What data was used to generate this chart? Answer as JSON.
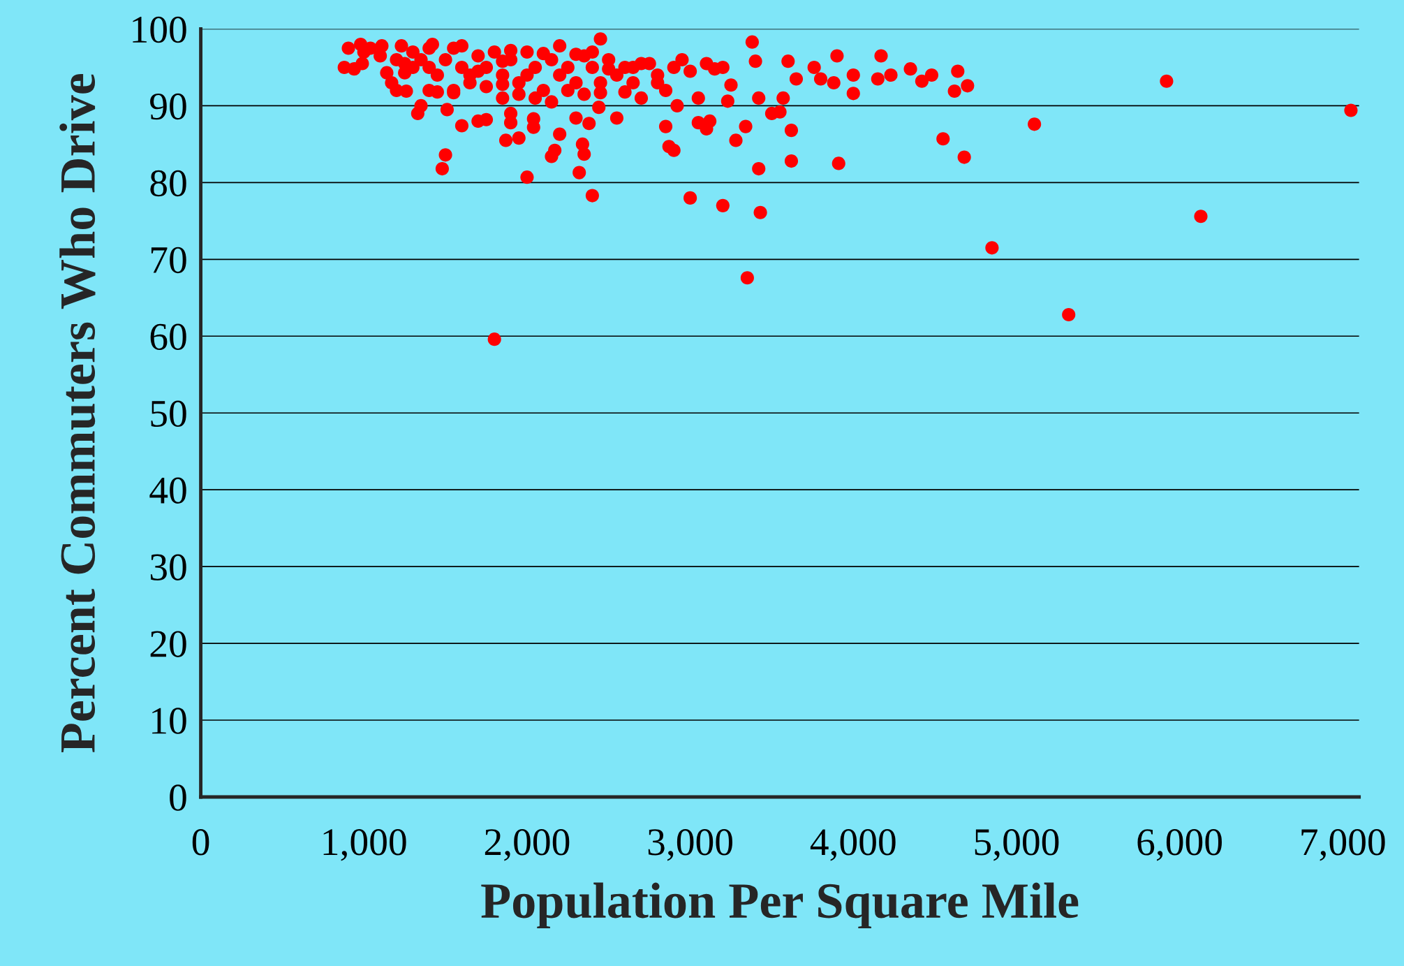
{
  "chart_data": {
    "type": "scatter",
    "xlabel": "Population Per Square Mile",
    "ylabel": "Percent Commuters Who Drive",
    "xlim": [
      0,
      7100
    ],
    "ylim": [
      0,
      100
    ],
    "xticks": [
      {
        "value": 0,
        "label": "0"
      },
      {
        "value": 1000,
        "label": "1,000"
      },
      {
        "value": 2000,
        "label": "2,000"
      },
      {
        "value": 3000,
        "label": "3,000"
      },
      {
        "value": 4000,
        "label": "4,000"
      },
      {
        "value": 5000,
        "label": "5,000"
      },
      {
        "value": 6000,
        "label": "6,000"
      },
      {
        "value": 7000,
        "label": "7,000"
      }
    ],
    "yticks": [
      0,
      10,
      20,
      30,
      40,
      50,
      60,
      70,
      80,
      90,
      100
    ],
    "grid": "y",
    "marker": "circle",
    "series": [
      {
        "color": "#ff0000",
        "x": [
          880,
          905,
          940,
          980,
          990,
          1040,
          1110,
          1140,
          1170,
          1200,
          1230,
          1250,
          1260,
          1330,
          1350,
          1400,
          1420,
          1480,
          1500,
          1510,
          1550,
          1600,
          1700,
          1750,
          1800,
          1850,
          1870,
          1900,
          1900,
          1950,
          2000,
          2040,
          2040,
          2150,
          2200,
          2170,
          2300,
          2320,
          2340,
          2350,
          2380,
          2400,
          2450,
          2440,
          2550,
          2700,
          2850,
          2870,
          2900,
          2920,
          3000,
          3050,
          3100,
          3120,
          3200,
          3200,
          3230,
          3280,
          3340,
          3350,
          3380,
          3400,
          3420,
          3430,
          3420,
          3500,
          3550,
          3570,
          3600,
          3620,
          3620,
          3650,
          3760,
          3800,
          3880,
          3900,
          3910,
          4000,
          4000,
          4150,
          4170,
          4230,
          4350,
          4420,
          4480,
          4550,
          4620,
          4640,
          4680,
          4700,
          4850,
          5110,
          5320,
          5920,
          6130,
          7050,
          1000,
          1100,
          1200,
          1300,
          1350,
          1400,
          1450,
          1500,
          1550,
          1600,
          1650,
          1700,
          1750,
          1800,
          1850,
          1900,
          1950,
          2000,
          2050,
          2100,
          2150,
          2200,
          2250,
          2300,
          2350,
          2400,
          2450,
          2500,
          2550,
          2600,
          2650,
          2700,
          2750,
          2800,
          2850,
          2900,
          2950,
          3000,
          3050,
          3100,
          3150,
          3250,
          1450,
          1550,
          1650,
          1750,
          1850,
          1950,
          2050,
          2150,
          2250,
          2350,
          2450,
          2600,
          2800,
          1300,
          1600,
          1900,
          2200,
          2500,
          1700,
          2000,
          2100,
          1400,
          1250,
          1850,
          2300,
          2400,
          2650
        ],
        "values": [
          95,
          97.5,
          94.8,
          98,
          95.5,
          97.5,
          97.8,
          94.3,
          93,
          92,
          97.8,
          94.3,
          91.9,
          89,
          90,
          92,
          98,
          81.8,
          83.6,
          89.5,
          92,
          87.4,
          88,
          88.2,
          59.6,
          91,
          85.5,
          87.8,
          89,
          85.8,
          80.7,
          88.3,
          87.2,
          83.4,
          86.3,
          84.2,
          88.4,
          81.3,
          85,
          83.7,
          87.7,
          78.3,
          98.7,
          89.8,
          88.4,
          91,
          87.3,
          84.7,
          84.2,
          90,
          78,
          87.8,
          87,
          88,
          95,
          77,
          90.6,
          85.5,
          87.3,
          67.6,
          98.3,
          95.8,
          81.8,
          76.1,
          91,
          89,
          89.2,
          91,
          95.8,
          86.8,
          82.8,
          93.5,
          95,
          93.5,
          93,
          96.5,
          82.5,
          91.6,
          94,
          93.5,
          96.5,
          94,
          94.8,
          93.2,
          94,
          85.7,
          91.9,
          94.5,
          83.3,
          92.6,
          71.5,
          87.6,
          62.8,
          93.2,
          75.6,
          89.4,
          97,
          96.5,
          96,
          97,
          96,
          95,
          94,
          96,
          97.5,
          95,
          94,
          96.5,
          95,
          97,
          94,
          96,
          93,
          97,
          95,
          92,
          96,
          94,
          95,
          93,
          96.5,
          95,
          93,
          96,
          94,
          95,
          93,
          95.5,
          95.5,
          94,
          92,
          95,
          96,
          94.5,
          91,
          95.5,
          94.8,
          92.7,
          91.8,
          91.7,
          93,
          92.5,
          92.8,
          91.5,
          91,
          90.5,
          92,
          91.5,
          91.7,
          91.8,
          93,
          95,
          97.8,
          97.2,
          97.8,
          94.8,
          94.5,
          94,
          96.8,
          97.5,
          95.5,
          95.8,
          96.7,
          97,
          95
        ]
      }
    ]
  }
}
